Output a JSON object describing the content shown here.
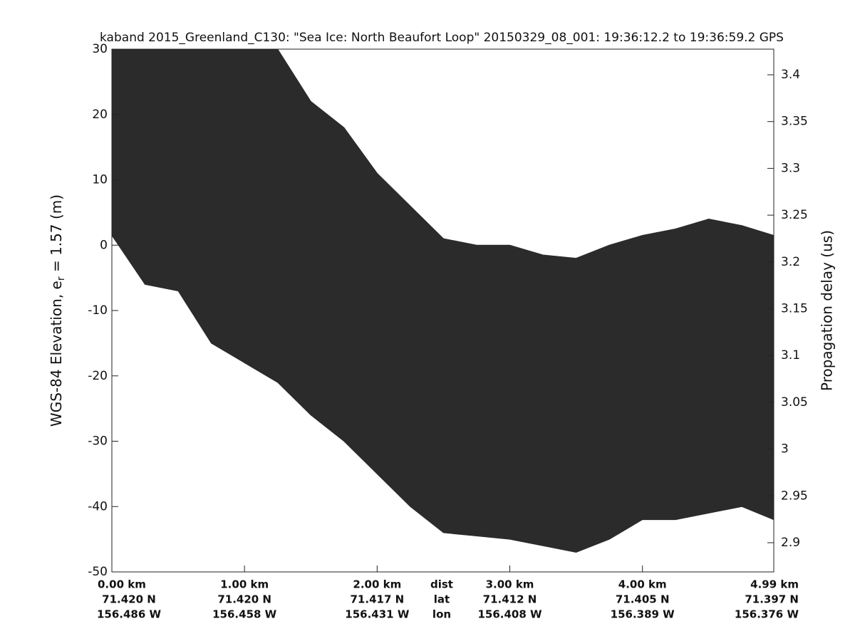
{
  "chart_data": {
    "type": "echogram",
    "title": "kaband 2015_Greenland_C130: \"Sea Ice: North Beaufort Loop\"  20150329_08_001: 19:36:12.2 to 19:36:59.2 GPS",
    "ylabel": "WGS-84 Elevation, e",
    "ylabel_sub": "r",
    "ylabel_end": " = 1.57 (m)",
    "y2label": "Propagation delay (us)",
    "color": "#2b2b2b",
    "x": [
      0,
      0.25,
      0.5,
      0.75,
      1.0,
      1.25,
      1.5,
      1.75,
      2.0,
      2.25,
      2.5,
      2.75,
      3.0,
      3.25,
      3.5,
      3.75,
      4.0,
      4.25,
      4.5,
      4.75,
      4.99
    ],
    "top": [
      32,
      32,
      32,
      32,
      32,
      30,
      22,
      18,
      11,
      6,
      1,
      0,
      0,
      -1.5,
      -2,
      0,
      1.5,
      2.5,
      4,
      3,
      1.5
    ],
    "bottom": [
      1.5,
      -6,
      -7,
      -15,
      -18,
      -21,
      -26,
      -30,
      -35,
      -40,
      -44,
      -44.5,
      -45,
      -46,
      -47,
      -45,
      -42,
      -42,
      -41,
      -40,
      -42
    ],
    "xlim": [
      0,
      4.99
    ],
    "xticks": [
      {
        "value": 0,
        "label": "0.00 km"
      },
      {
        "value": 1,
        "label": "1.00 km"
      },
      {
        "value": 2,
        "label": "2.00 km"
      },
      {
        "value": 3,
        "label": "3.00 km"
      },
      {
        "value": 4,
        "label": "4.00 km"
      },
      {
        "value": 4.99,
        "label": "4.99 km"
      }
    ],
    "xtick_lat": [
      "71.420 N",
      "71.420 N",
      "71.417 N",
      "71.412 N",
      "71.405 N",
      "71.397 N"
    ],
    "xtick_lon": [
      "156.486 W",
      "156.458 W",
      "156.431 W",
      "156.408 W",
      "156.389 W",
      "156.376 W"
    ],
    "row_names": [
      "dist",
      "lat",
      "lon"
    ],
    "ylim": [
      -50,
      30
    ],
    "yticks": [
      -50,
      -40,
      -30,
      -20,
      -10,
      0,
      10,
      20,
      30
    ],
    "y2lim": [
      2.8688,
      3.4274
    ],
    "y2ticks": [
      2.9,
      2.95,
      3,
      3.05,
      3.1,
      3.15,
      3.2,
      3.25,
      3.3,
      3.35,
      3.4
    ]
  }
}
